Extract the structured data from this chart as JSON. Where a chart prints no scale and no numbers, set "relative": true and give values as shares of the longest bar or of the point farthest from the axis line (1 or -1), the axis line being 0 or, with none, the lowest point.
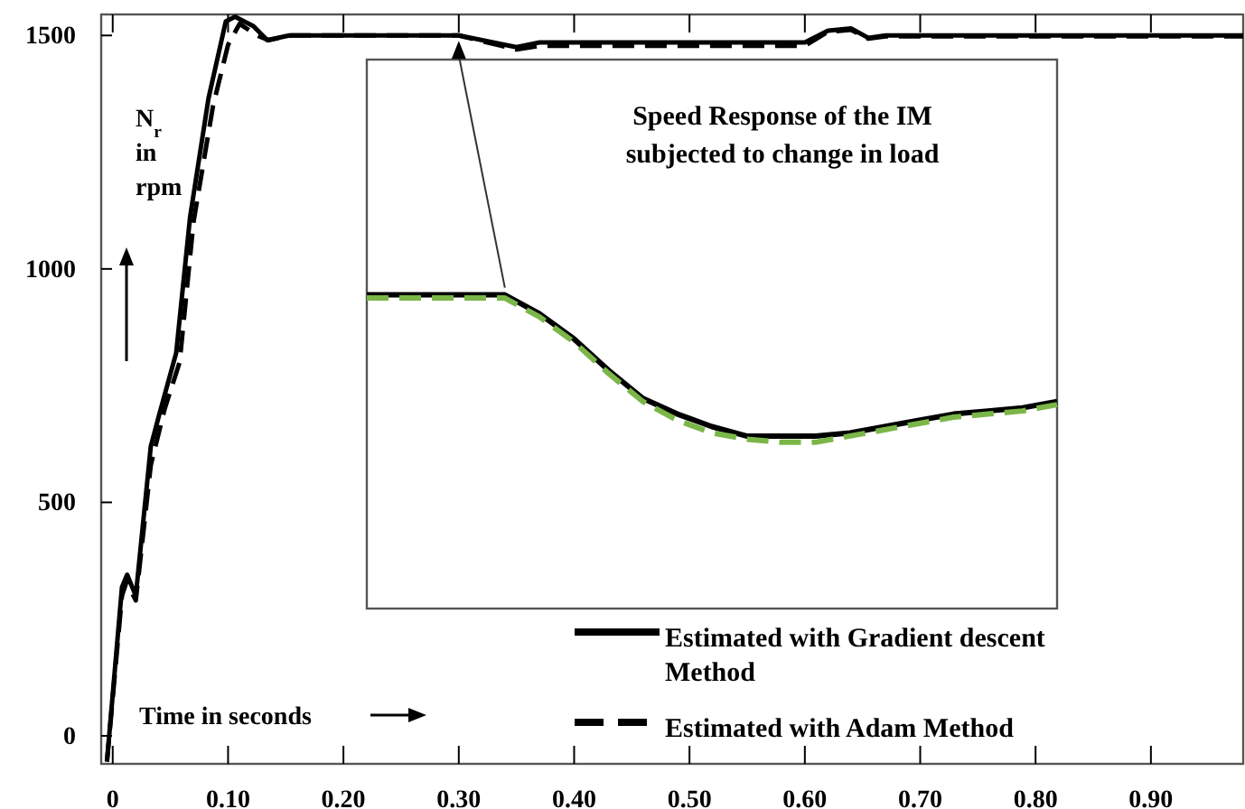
{
  "chart_data": [
    {
      "type": "line",
      "xlabel": "Time in seconds",
      "ylabel": "N$_{r}$ in rpm",
      "legend": "bottom right",
      "xlim": [
        -0.01,
        0.98
      ],
      "ylim": [
        -60,
        1545
      ],
      "xticks": [
        0,
        {
          "value": 0.1,
          "label": "0.10"
        },
        {
          "value": 0.2,
          "label": "0.20"
        },
        {
          "value": 0.3,
          "label": "0.30"
        },
        {
          "value": 0.4,
          "label": "0.40"
        },
        {
          "value": 0.5,
          "label": "0.50"
        },
        {
          "value": 0.6,
          "label": "0.60"
        },
        {
          "value": 0.7,
          "label": "0.70"
        },
        {
          "value": 0.8,
          "label": "0.80"
        },
        {
          "value": 0.9,
          "label": "0.90"
        }
      ],
      "yticks": [
        0,
        500,
        1000,
        1500
      ],
      "series": [
        {
          "name": "Estimated with Gradient descent Method",
          "color": "#000000",
          "line_style": "solid",
          "x": [
            -0.005,
            0.008,
            0.0125,
            0.02,
            0.033,
            0.04,
            0.055,
            0.067,
            0.083,
            0.098,
            0.106,
            0.122,
            0.134,
            0.153,
            0.3,
            0.35,
            0.37,
            0.6,
            0.62,
            0.64,
            0.655,
            0.67,
            0.98
          ],
          "values": [
            -55,
            318,
            345,
            300,
            620,
            685,
            820,
            1110,
            1365,
            1530,
            1540,
            1520,
            1490,
            1500,
            1500,
            1475,
            1485,
            1485,
            1510,
            1515,
            1495,
            1500,
            1500
          ]
        },
        {
          "name": "Estimated with Adam Method",
          "color": "#000000",
          "line_style": "dashed",
          "x": [
            -0.005,
            0.008,
            0.012,
            0.02,
            0.033,
            0.045,
            0.058,
            0.07,
            0.087,
            0.1,
            0.11,
            0.125,
            0.135,
            0.155,
            0.3,
            0.35,
            0.37,
            0.6,
            0.62,
            0.64,
            0.655,
            0.67,
            0.98
          ],
          "values": [
            -55,
            300,
            330,
            290,
            580,
            700,
            800,
            1100,
            1350,
            1480,
            1525,
            1500,
            1490,
            1500,
            1500,
            1470,
            1478,
            1478,
            1508,
            1512,
            1493,
            1498,
            1498
          ]
        }
      ]
    },
    {
      "type": "line",
      "title": "Speed Response of the IM subjected to change in load",
      "relative": true,
      "categories": [
        null,
        null,
        null,
        null,
        null,
        null,
        null,
        null,
        null,
        null,
        null,
        null,
        null,
        null,
        null,
        null,
        null,
        null,
        null,
        null,
        null
      ],
      "series": [
        {
          "color": "#000000",
          "line_style": "solid",
          "values": [
            1,
            1,
            1,
            1,
            1,
            0.94,
            0.86,
            0.76,
            0.67,
            0.62,
            0.58,
            0.55,
            0.55,
            0.55,
            0.56,
            0.58,
            0.6,
            0.62,
            0.63,
            0.64,
            0.66
          ]
        },
        {
          "color": "#7ab648",
          "line_style": "dashed",
          "values": [
            0.99,
            0.99,
            0.99,
            0.99,
            0.99,
            0.93,
            0.85,
            0.75,
            0.66,
            0.6,
            0.56,
            0.54,
            0.53,
            0.53,
            0.55,
            0.57,
            0.59,
            0.61,
            0.62,
            0.63,
            0.65
          ]
        }
      ]
    }
  ]
}
